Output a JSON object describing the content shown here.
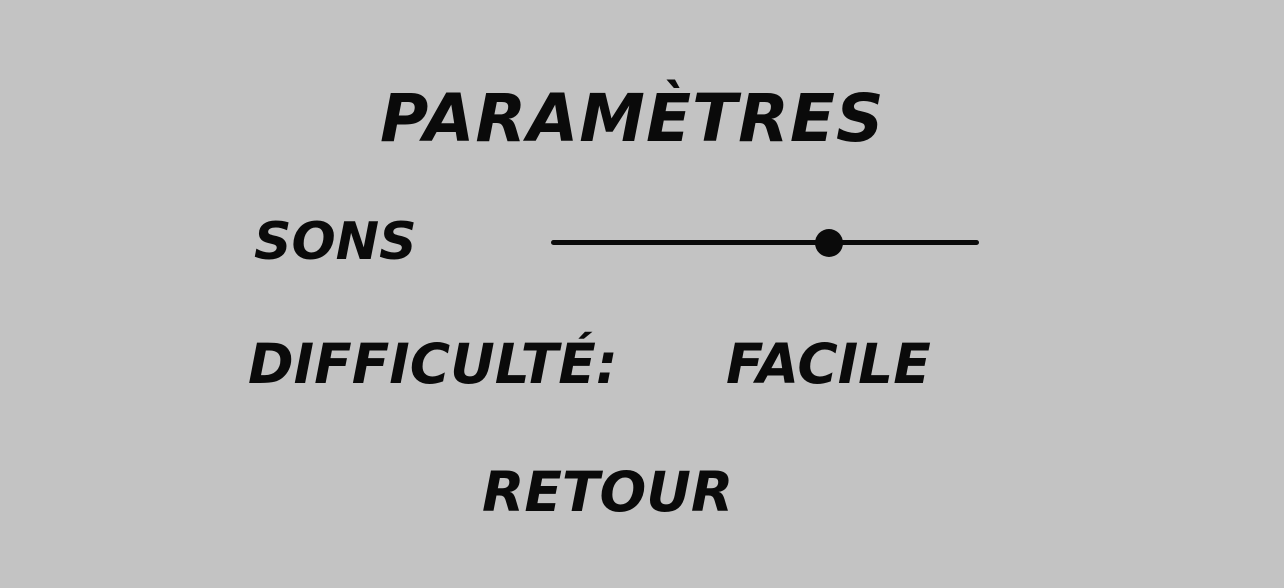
{
  "settings_menu": {
    "title": "PARAMÈTRES",
    "sound": {
      "label": "SONS",
      "volume_fraction": 0.65
    },
    "difficulty": {
      "label": "DIFFICULTÉ:",
      "value": "FACILE"
    },
    "back_label": "RETOUR"
  },
  "colors": {
    "background": "#c3c3c3",
    "text": "#0a0a0a"
  }
}
